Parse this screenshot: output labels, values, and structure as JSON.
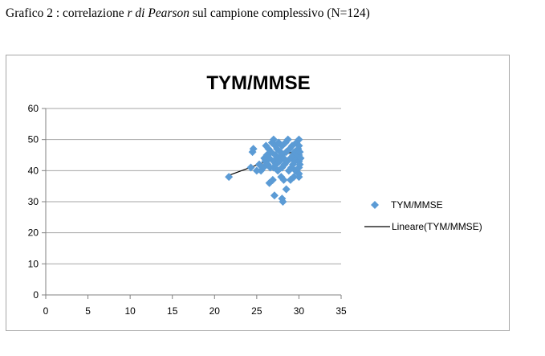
{
  "caption": {
    "prefix": "Grafico 2 : correlazione ",
    "italic": "r di Pearson",
    "suffix": " sul campione complessivo (N=124)"
  },
  "colors": {
    "marker": "#5b9bd5",
    "trendline": "#000000",
    "gridline": "#a6a6a6",
    "frame": "#a6a6a6"
  },
  "chart_data": {
    "type": "scatter",
    "title": "TYM/MMSE",
    "xlabel": "",
    "ylabel": "",
    "xlim": [
      0,
      35
    ],
    "ylim": [
      0,
      60
    ],
    "xticks": [
      0,
      5,
      10,
      15,
      20,
      25,
      30,
      35
    ],
    "yticks": [
      0,
      10,
      20,
      30,
      40,
      50,
      60
    ],
    "grid": "horizontal",
    "legend_position": "right",
    "series": [
      {
        "name": "TYM/MMSE",
        "marker": "diamond",
        "points": [
          [
            21.7,
            38
          ],
          [
            24.3,
            41
          ],
          [
            24.5,
            46
          ],
          [
            24.6,
            47
          ],
          [
            25.0,
            40
          ],
          [
            25.3,
            42
          ],
          [
            25.5,
            40
          ],
          [
            25.8,
            41
          ],
          [
            25.9,
            44
          ],
          [
            26.0,
            43
          ],
          [
            26.1,
            48
          ],
          [
            26.2,
            45
          ],
          [
            26.3,
            42
          ],
          [
            26.4,
            47
          ],
          [
            26.5,
            36
          ],
          [
            26.5,
            44
          ],
          [
            26.6,
            41
          ],
          [
            26.7,
            46
          ],
          [
            26.8,
            49
          ],
          [
            26.9,
            37
          ],
          [
            27.0,
            50
          ],
          [
            27.0,
            43
          ],
          [
            27.0,
            41
          ],
          [
            27.1,
            32
          ],
          [
            27.2,
            45
          ],
          [
            27.2,
            48
          ],
          [
            27.3,
            42
          ],
          [
            27.4,
            47
          ],
          [
            27.5,
            44
          ],
          [
            27.5,
            40
          ],
          [
            27.6,
            49
          ],
          [
            27.7,
            43
          ],
          [
            27.8,
            46
          ],
          [
            27.9,
            38
          ],
          [
            28.0,
            31
          ],
          [
            28.0,
            41
          ],
          [
            28.0,
            48
          ],
          [
            28.0,
            45
          ],
          [
            28.1,
            30
          ],
          [
            28.2,
            44
          ],
          [
            28.2,
            37
          ],
          [
            28.3,
            42
          ],
          [
            28.4,
            49
          ],
          [
            28.5,
            34
          ],
          [
            28.5,
            46
          ],
          [
            28.6,
            43
          ],
          [
            28.7,
            50
          ],
          [
            28.8,
            40
          ],
          [
            28.9,
            47
          ],
          [
            29.0,
            37
          ],
          [
            29.0,
            44
          ],
          [
            29.1,
            41
          ],
          [
            29.2,
            48
          ],
          [
            29.3,
            45
          ],
          [
            29.3,
            42
          ],
          [
            29.4,
            38
          ],
          [
            29.5,
            46
          ],
          [
            29.5,
            43
          ],
          [
            29.6,
            40
          ],
          [
            29.7,
            49
          ],
          [
            29.8,
            44
          ],
          [
            29.9,
            47
          ],
          [
            30.0,
            50
          ],
          [
            30.0,
            48
          ],
          [
            30.0,
            45
          ],
          [
            30.0,
            43
          ],
          [
            30.0,
            41
          ],
          [
            30.0,
            39
          ],
          [
            30.0,
            38
          ],
          [
            30.1,
            46
          ],
          [
            30.1,
            42
          ],
          [
            30.2,
            44
          ]
        ]
      }
    ],
    "trendline": {
      "name": "Lineare(TYM/MMSE)",
      "type": "linear",
      "x_range": [
        21.7,
        30
      ],
      "y_range": [
        38.5,
        46.8
      ]
    }
  }
}
